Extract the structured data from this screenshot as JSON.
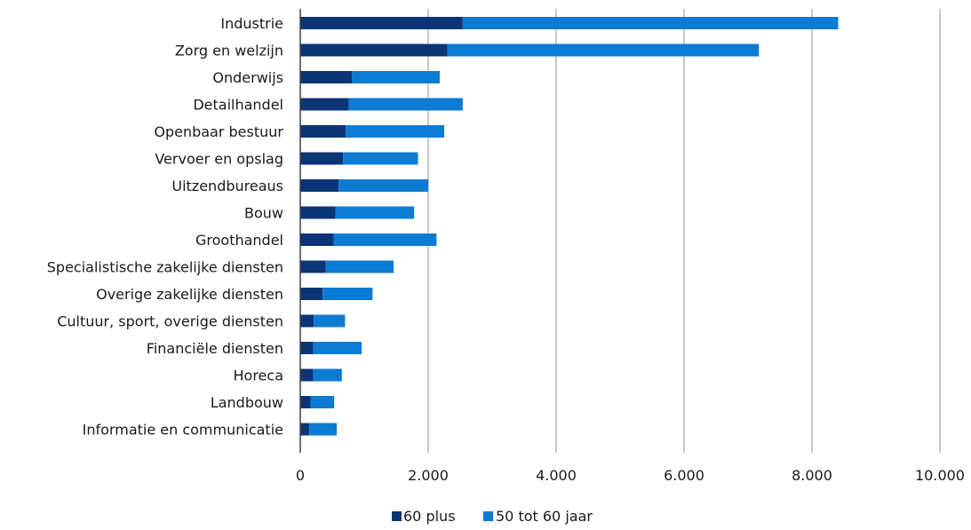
{
  "chart_data": {
    "type": "bar",
    "orientation": "horizontal",
    "stacked": true,
    "categories": [
      "Industrie",
      "Zorg en welzijn",
      "Onderwijs",
      "Detailhandel",
      "Openbaar bestuur",
      "Vervoer en opslag",
      "Uitzendbureaus",
      "Bouw",
      "Groothandel",
      "Specialistische zakelijke diensten",
      "Overige zakelijke diensten",
      "Cultuur, sport, overige diensten",
      "Financiële diensten",
      "Horeca",
      "Landbouw",
      "Informatie en communicatie"
    ],
    "series": [
      {
        "name": "60 plus",
        "color": "#0b3577",
        "values": [
          2540,
          2300,
          810,
          760,
          710,
          670,
          600,
          550,
          520,
          400,
          350,
          210,
          200,
          200,
          160,
          140
        ]
      },
      {
        "name": "50 tot 60 jaar",
        "color": "#0b7bd4",
        "values": [
          5870,
          4870,
          1370,
          1780,
          1540,
          1170,
          1400,
          1230,
          1610,
          1060,
          780,
          490,
          760,
          450,
          370,
          430
        ]
      }
    ],
    "x_ticks": [
      "0",
      "2.000",
      "4.000",
      "6.000",
      "8.000",
      "10.000"
    ],
    "xlim": [
      0,
      10000
    ],
    "grid": "vertical",
    "legend": "bottom-center"
  }
}
